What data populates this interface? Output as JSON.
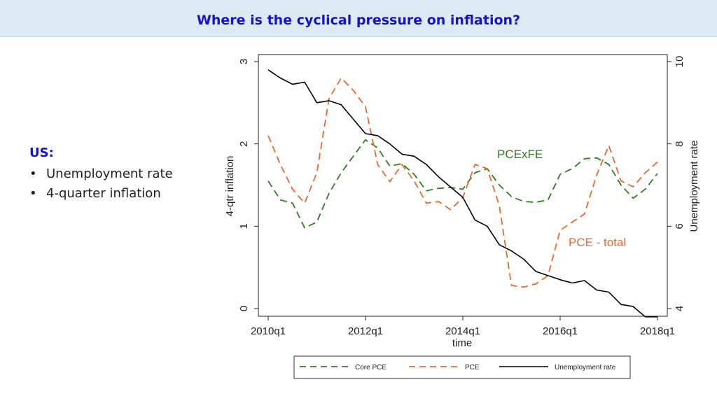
{
  "slide": {
    "title": "Where is the cyclical pressure on inflation?",
    "bullets_heading": "US:",
    "bullets": [
      "Unemployment rate",
      "4-quarter inflation"
    ]
  },
  "colors": {
    "core_pce": "#2e7d1f",
    "pce": "#e8692c",
    "unemployment": "#000000",
    "title": "#1414c8"
  },
  "chart_data": {
    "type": "line",
    "xlabel": "time",
    "ylabel": "4-qtr inflation",
    "y2label": "Unemployment rate",
    "x_tick_labels": [
      "2010q1",
      "2012q1",
      "2014q1",
      "2016q1",
      "2018q1"
    ],
    "y_ticks": [
      "0",
      "1",
      "2",
      "3"
    ],
    "y2_ticks": [
      "4",
      "6",
      "8",
      "10"
    ],
    "ylim": [
      0,
      3.1
    ],
    "y2lim": [
      4,
      10.2
    ],
    "grid": false,
    "legend_position": "bottom",
    "annotations": [
      {
        "text": "PCExFE",
        "color": "#2e7d1f"
      },
      {
        "text": "PCE - total",
        "color": "#e8692c"
      }
    ],
    "x": [
      0,
      1,
      2,
      3,
      4,
      5,
      6,
      7,
      8,
      9,
      10,
      11,
      12,
      13,
      14,
      15,
      16,
      17,
      18,
      19,
      20,
      21,
      22,
      23,
      24,
      25,
      26,
      27,
      28,
      29,
      30,
      31,
      32
    ],
    "series": [
      {
        "name": "Core PCE",
        "axis": "left",
        "style": "dashed",
        "color": "#2e7d1f",
        "values": [
          1.55,
          1.32,
          1.28,
          0.98,
          1.05,
          1.4,
          1.65,
          1.85,
          2.05,
          1.95,
          1.73,
          1.76,
          1.63,
          1.43,
          1.46,
          1.47,
          1.45,
          1.65,
          1.7,
          1.5,
          1.36,
          1.3,
          1.29,
          1.32,
          1.63,
          1.7,
          1.82,
          1.83,
          1.75,
          1.5,
          1.34,
          1.45,
          1.64
        ]
      },
      {
        "name": "PCE",
        "axis": "left",
        "style": "dashed",
        "color": "#e8692c",
        "values": [
          2.1,
          1.75,
          1.45,
          1.28,
          1.65,
          2.55,
          2.8,
          2.65,
          2.45,
          1.75,
          1.54,
          1.75,
          1.55,
          1.28,
          1.3,
          1.2,
          1.35,
          1.75,
          1.7,
          1.25,
          0.28,
          0.26,
          0.3,
          0.4,
          0.95,
          1.05,
          1.15,
          1.62,
          1.98,
          1.55,
          1.48,
          1.65,
          1.78
        ]
      },
      {
        "name": "Unemployment rate",
        "axis": "right",
        "style": "solid",
        "color": "#000000",
        "values": [
          9.8,
          9.6,
          9.45,
          9.5,
          9.0,
          9.05,
          8.95,
          8.6,
          8.25,
          8.2,
          8.0,
          7.75,
          7.7,
          7.5,
          7.2,
          6.95,
          6.7,
          6.15,
          6.0,
          5.55,
          5.4,
          5.2,
          4.9,
          4.8,
          4.7,
          4.62,
          4.68,
          4.45,
          4.4,
          4.1,
          4.05,
          3.8,
          3.8
        ]
      }
    ]
  }
}
